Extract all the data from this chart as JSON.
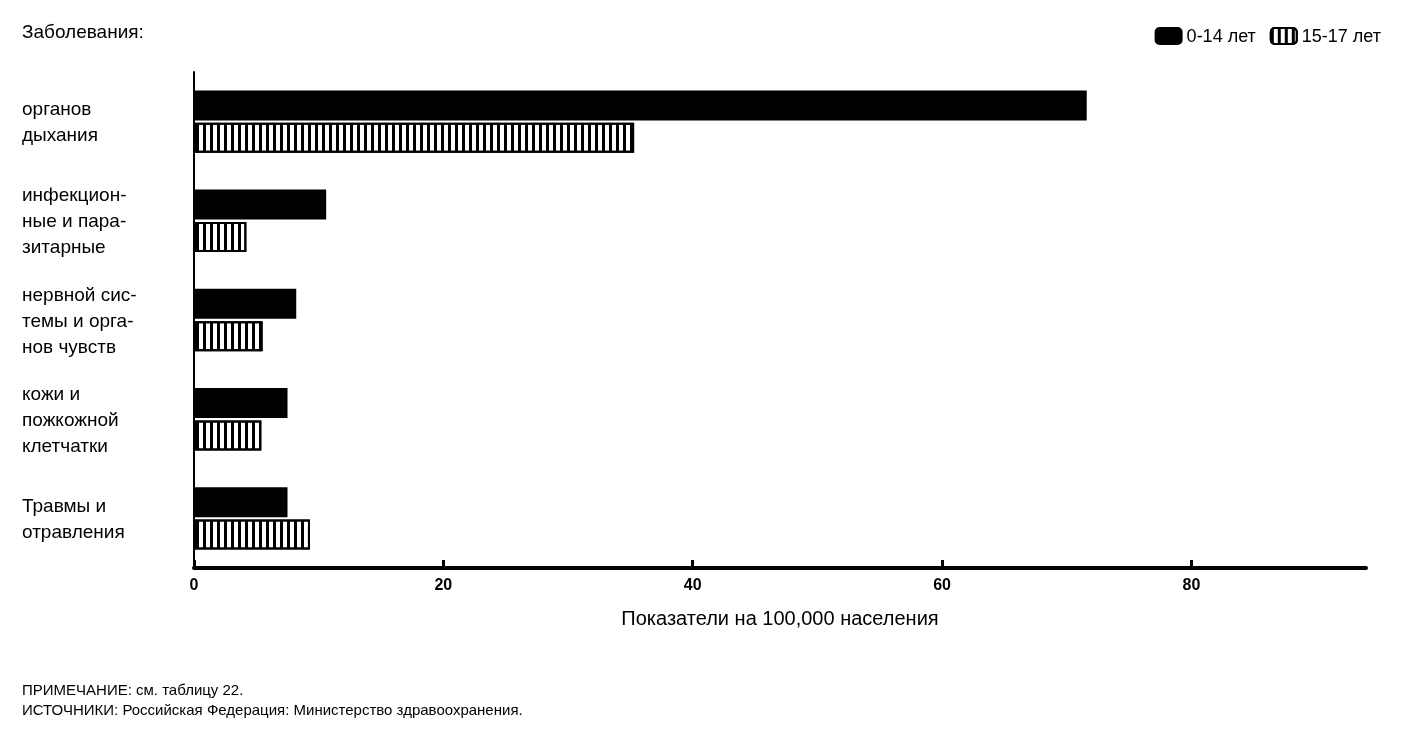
{
  "chart_data": {
    "type": "bar",
    "orientation": "horizontal",
    "ylabel": "Заболевания:",
    "xlabel": "Показатели на 100,000 населения",
    "categories": [
      "органов\nдыхания",
      "инфекцион-\nные и пара-\nзитарные",
      "нервной сис-\nтемы и орга-\nнов чувств",
      "кожи и\nпожкожной\nклетчатки",
      "Травмы и\nотравления"
    ],
    "series": [
      {
        "name": "0-14 лет",
        "color": "#000000",
        "values": [
          71.6,
          10.6,
          8.2,
          7.5,
          7.5
        ]
      },
      {
        "name": "15-17 лет",
        "color": "#ffffff",
        "values": [
          35.3,
          4.2,
          5.5,
          5.4,
          9.3
        ]
      }
    ],
    "xlim": [
      0,
      94
    ],
    "xticks": [
      0,
      20,
      40,
      60,
      80
    ],
    "grid": false,
    "legend": "top right",
    "annotations": [
      "ПРИМЕЧАНИЕ: см. таблицу 22.",
      "ИСТОЧНИКИ: Российская Федерация: Министерство здравоохранения."
    ]
  }
}
